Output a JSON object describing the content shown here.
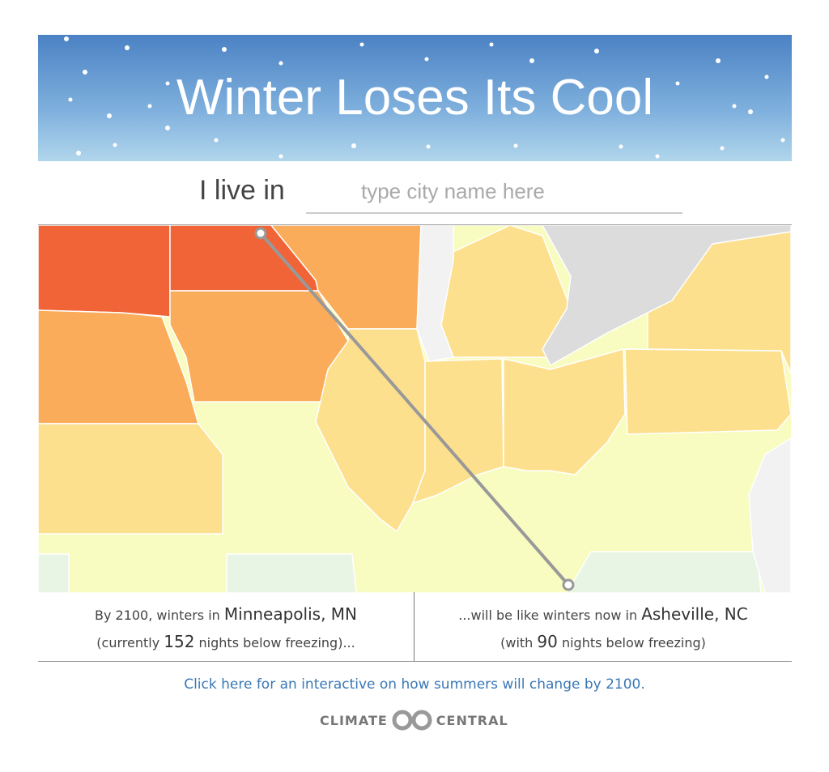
{
  "header": {
    "title": "Winter Loses Its Cool"
  },
  "search": {
    "label": "I live in",
    "placeholder": "type city name here"
  },
  "comparison": {
    "left": {
      "prefix": "By 2100, winters in",
      "city": "Minneapolis, MN",
      "open": "(currently",
      "nights": 152,
      "suffix": "nights below freezing)..."
    },
    "right": {
      "prefix": "...will be like winters now in",
      "city": "Asheville, NC",
      "open": "(with",
      "nights": 90,
      "suffix": "nights below freezing)"
    }
  },
  "link": "Click here for an interactive on how summers will change by 2100.",
  "logo": {
    "left": "CLIMATE",
    "right": "CENTRAL"
  }
}
